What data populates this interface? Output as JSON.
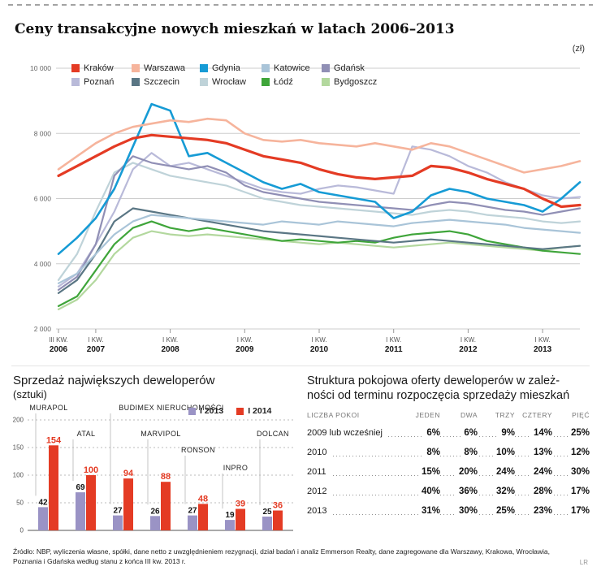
{
  "page": {
    "title": "Ceny transakcyjne nowych mieszkań w latach 2006–2013",
    "unit_label": "(zł)",
    "source": "Źródło: NBP, wyliczenia własne, spółki, dane netto z uwzględnieniem rezygnacji, dział badań i analiz Emmerson Realty, dane zagregowane dla Warszawy, Krakowa, Wrocławia, Poznania i Gdańska według stanu z końca III kw. 2013 r.",
    "credit": "LR"
  },
  "chart_data": [
    {
      "type": "line",
      "title": "Ceny transakcyjne nowych mieszkań w latach 2006–2013",
      "unit": "zł",
      "ylim": [
        2000,
        10000
      ],
      "yticks": [
        2000,
        4000,
        6000,
        8000,
        10000
      ],
      "ytick_labels": [
        "2 000",
        "4 000",
        "6 000",
        "8 000",
        "10 000"
      ],
      "x_count": 29,
      "x_start": "III kw. 2006",
      "x_end": "III kw. 2013",
      "xticks": [
        {
          "i": 0,
          "kw": "III KW.",
          "year": "2006"
        },
        {
          "i": 2,
          "kw": "I KW.",
          "year": "2007"
        },
        {
          "i": 6,
          "kw": "I KW.",
          "year": "2008"
        },
        {
          "i": 10,
          "kw": "I KW.",
          "year": "2009"
        },
        {
          "i": 14,
          "kw": "I KW.",
          "year": "2010"
        },
        {
          "i": 18,
          "kw": "I KW.",
          "year": "2011"
        },
        {
          "i": 22,
          "kw": "I KW.",
          "year": "2012"
        },
        {
          "i": 26,
          "kw": "I KW.",
          "year": "2013"
        }
      ],
      "series": [
        {
          "name": "Kraków",
          "color": "#e43b24",
          "width": 3.2,
          "values": [
            6700,
            7000,
            7300,
            7600,
            7850,
            7950,
            7900,
            7850,
            7800,
            7700,
            7500,
            7300,
            7200,
            7100,
            6900,
            6750,
            6650,
            6600,
            6650,
            6700,
            7000,
            6950,
            6800,
            6600,
            6450,
            6300,
            6000,
            5750,
            5800
          ]
        },
        {
          "name": "Warszawa",
          "color": "#f6b49c",
          "width": 2.6,
          "values": [
            6900,
            7300,
            7700,
            8000,
            8200,
            8300,
            8400,
            8350,
            8450,
            8400,
            8000,
            7800,
            7750,
            7800,
            7700,
            7650,
            7600,
            7700,
            7600,
            7500,
            7700,
            7600,
            7400,
            7200,
            7000,
            6800,
            6900,
            7000,
            7150
          ]
        },
        {
          "name": "Gdynia",
          "color": "#169bd5",
          "width": 2.6,
          "values": [
            4300,
            4800,
            5400,
            6300,
            7600,
            8900,
            8700,
            7300,
            7400,
            7100,
            6800,
            6500,
            6300,
            6450,
            6200,
            6100,
            6000,
            5900,
            5400,
            5600,
            6100,
            6300,
            6200,
            6000,
            5900,
            5800,
            5600,
            6000,
            6500
          ]
        },
        {
          "name": "Katowice",
          "color": "#a9c4d8",
          "width": 2.2,
          "values": [
            3400,
            3700,
            4300,
            4900,
            5300,
            5500,
            5450,
            5400,
            5350,
            5300,
            5250,
            5200,
            5300,
            5250,
            5200,
            5300,
            5250,
            5200,
            5150,
            5250,
            5300,
            5350,
            5300,
            5250,
            5200,
            5100,
            5050,
            5000,
            4950
          ]
        },
        {
          "name": "Gdańsk",
          "color": "#908fb5",
          "width": 2.2,
          "values": [
            3200,
            3600,
            4600,
            6700,
            7300,
            7100,
            7000,
            6900,
            7000,
            6800,
            6400,
            6200,
            6100,
            6000,
            5900,
            5850,
            5800,
            5750,
            5700,
            5650,
            5800,
            5900,
            5850,
            5750,
            5650,
            5600,
            5500,
            5600,
            5700
          ]
        },
        {
          "name": "Poznań",
          "color": "#b9bad9",
          "width": 2.2,
          "values": [
            3300,
            3700,
            4600,
            5600,
            6900,
            7400,
            7000,
            7100,
            6900,
            6700,
            6500,
            6300,
            6200,
            6150,
            6300,
            6400,
            6350,
            6250,
            6150,
            7600,
            7500,
            7300,
            7000,
            6800,
            6500,
            6300,
            6100,
            6000,
            6050
          ]
        },
        {
          "name": "Szczecin",
          "color": "#5a7684",
          "width": 2.2,
          "values": [
            3100,
            3500,
            4300,
            5300,
            5700,
            5600,
            5500,
            5400,
            5300,
            5200,
            5100,
            5000,
            4950,
            4900,
            4850,
            4800,
            4750,
            4700,
            4650,
            4700,
            4750,
            4700,
            4650,
            4600,
            4550,
            4500,
            4450,
            4500,
            4550
          ]
        },
        {
          "name": "Wrocław",
          "color": "#bfd3d9",
          "width": 2.2,
          "values": [
            3500,
            4300,
            5600,
            6800,
            7100,
            6900,
            6700,
            6600,
            6500,
            6400,
            6200,
            6000,
            5900,
            5800,
            5750,
            5700,
            5650,
            5600,
            5550,
            5500,
            5600,
            5650,
            5600,
            5500,
            5450,
            5400,
            5300,
            5250,
            5300
          ]
        },
        {
          "name": "Łódź",
          "color": "#3fa53a",
          "width": 2.2,
          "values": [
            2700,
            3000,
            3800,
            4600,
            5100,
            5300,
            5100,
            5000,
            5100,
            5000,
            4900,
            4800,
            4700,
            4750,
            4700,
            4650,
            4700,
            4650,
            4800,
            4900,
            4950,
            5000,
            4900,
            4700,
            4600,
            4500,
            4400,
            4350,
            4300
          ]
        },
        {
          "name": "Bydgoszcz",
          "color": "#b3d89e",
          "width": 2.2,
          "values": [
            2600,
            2900,
            3500,
            4300,
            4800,
            5000,
            4900,
            4850,
            4900,
            4850,
            4800,
            4750,
            4700,
            4650,
            4600,
            4650,
            4600,
            4550,
            4500,
            4550,
            4600,
            4650,
            4600,
            4550,
            4500,
            4450,
            4400,
            4500,
            4550
          ]
        }
      ],
      "legend_rows": [
        [
          "Kraków",
          "Warszawa",
          "Gdynia",
          "Katowice",
          "Gdańsk"
        ],
        [
          "Poznań",
          "Szczecin",
          "Wrocław",
          "Łódź",
          "Bydgoszcz"
        ]
      ]
    },
    {
      "type": "bar",
      "title": "Sprzedaż największych deweloperów",
      "subtitle": "(sztuki)",
      "legend": [
        {
          "label": "I 2013",
          "color": "#9a93c5"
        },
        {
          "label": "I 2014",
          "color": "#e43b24"
        }
      ],
      "categories": [
        "MURAPOL",
        "ATAL",
        "BUDIMEX NIERUCHOMOŚCI",
        "MARVIPOL",
        "RONSON",
        "INPRO",
        "DOLCAN"
      ],
      "series": [
        {
          "name": "I 2013",
          "color": "#9a93c5",
          "values": [
            42,
            69,
            27,
            26,
            27,
            19,
            25
          ]
        },
        {
          "name": "I 2014",
          "color": "#e43b24",
          "values": [
            154,
            100,
            94,
            88,
            48,
            39,
            36
          ]
        }
      ],
      "ylim": [
        0,
        200
      ],
      "yticks": [
        0,
        50,
        100,
        150,
        200
      ]
    },
    {
      "type": "table",
      "title": "Struktura pokojowa oferty deweloperów w zależności od terminu rozpoczęcia sprzedaży mieszkań",
      "title_lines": [
        "Struktura pokojowa oferty deweloperów w zależ-",
        "ności od terminu rozpoczęcia sprzedaży mieszkań"
      ],
      "columns": [
        "LICZBA POKOI",
        "JEDEN",
        "DWA",
        "TRZY",
        "CZTERY",
        "PIĘĆ"
      ],
      "rows": [
        {
          "label": "2009 lub wcześniej",
          "values": [
            "6%",
            "6%",
            "9%",
            "14%",
            "25%"
          ]
        },
        {
          "label": "2010",
          "values": [
            "8%",
            "8%",
            "10%",
            "13%",
            "12%"
          ]
        },
        {
          "label": "2011",
          "values": [
            "15%",
            "20%",
            "24%",
            "24%",
            "30%"
          ]
        },
        {
          "label": "2012",
          "values": [
            "40%",
            "36%",
            "32%",
            "28%",
            "17%"
          ]
        },
        {
          "label": "2013",
          "values": [
            "31%",
            "30%",
            "25%",
            "23%",
            "17%"
          ]
        }
      ]
    }
  ]
}
